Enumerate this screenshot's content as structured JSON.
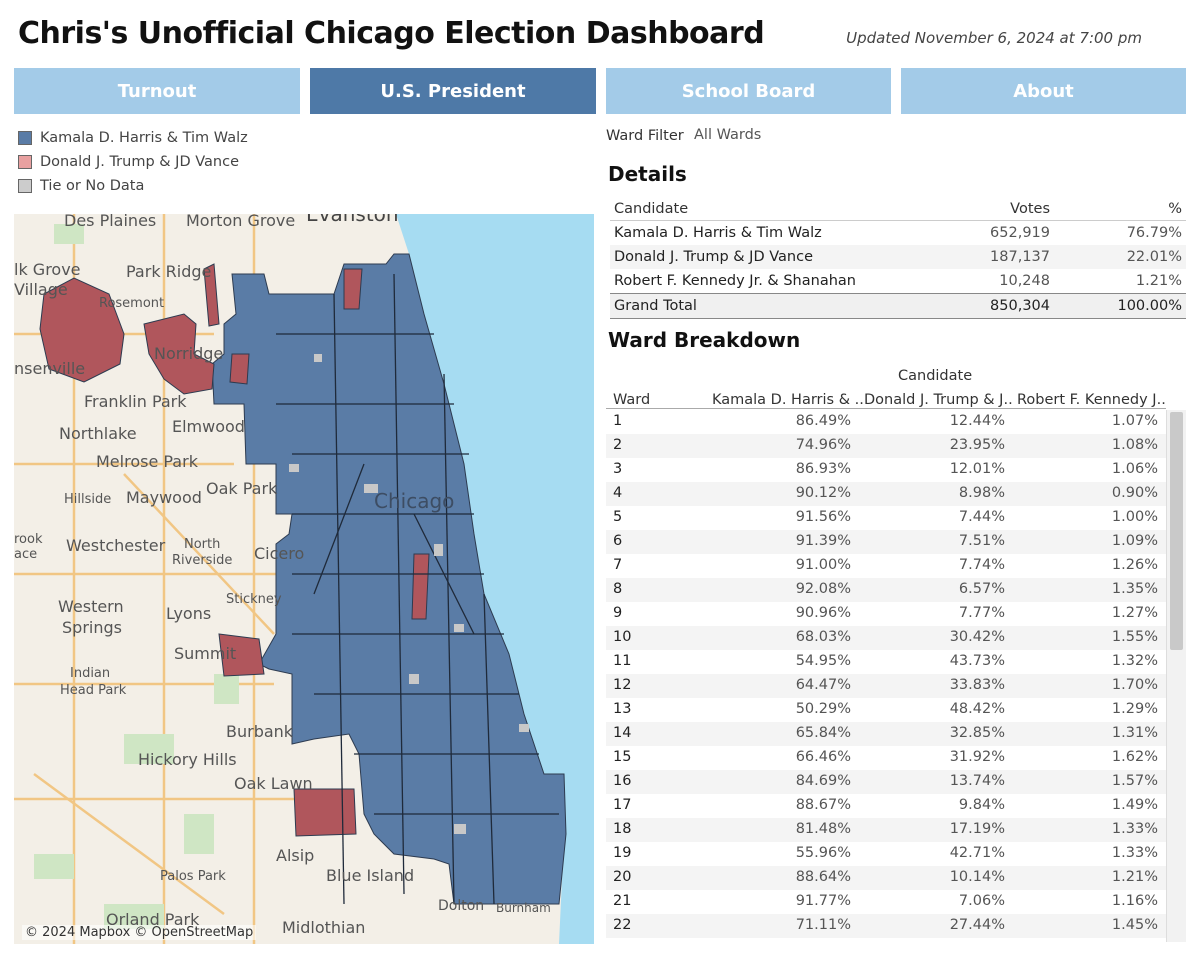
{
  "header": {
    "title": "Chris's Unofficial Chicago Election Dashboard",
    "updated": "Updated November 6, 2024 at 7:00 pm"
  },
  "tabs": [
    {
      "label": "Turnout",
      "active": false
    },
    {
      "label": "U.S. President",
      "active": true
    },
    {
      "label": "School Board",
      "active": false
    },
    {
      "label": "About",
      "active": false
    }
  ],
  "colors": {
    "harris": "#4e79a7",
    "trump": "#b0565c",
    "tie": "#c8c8c8",
    "tab_inactive": "#a3cbe8",
    "tab_active": "#4e79a7",
    "lake": "#a6dcf2"
  },
  "legend": [
    {
      "label": "Kamala D. Harris & Tim Walz",
      "color": "#5a7ca6"
    },
    {
      "label": "Donald J. Trump & JD Vance",
      "color": "#e8a0a0"
    },
    {
      "label": "Tie or No Data",
      "color": "#cccccc"
    }
  ],
  "map": {
    "labels": [
      "Des Plaines",
      "Morton Grove",
      "Evanston",
      "lk Grove",
      "Village",
      "Park Ridge",
      "Rosemont",
      "Norridge",
      "nsenville",
      "Franklin Park",
      "Northlake",
      "Elmwood",
      "Melrose Park",
      "Hillside",
      "Maywood",
      "Oak Park",
      "Chicago",
      "rook",
      "ace",
      "Westchester",
      "North",
      "Riverside",
      "Cicero",
      "Stickney",
      "Western",
      "Springs",
      "Lyons",
      "Summit",
      "Indian",
      "Head Park",
      "Burbank",
      "Hickory Hills",
      "Oak Lawn",
      "Alsip",
      "Palos Park",
      "Blue Island",
      "Orland Park",
      "Midlothian",
      "Dolton",
      "Burnham"
    ],
    "attribution": "© 2024 Mapbox © OpenStreetMap"
  },
  "filter": {
    "label": "Ward Filter",
    "value": "All Wards"
  },
  "details": {
    "title": "Details",
    "columns": [
      "Candidate",
      "Votes",
      "%"
    ],
    "rows": [
      [
        "Kamala D. Harris & Tim Walz",
        "652,919",
        "76.79%"
      ],
      [
        "Donald J. Trump & JD Vance",
        "187,137",
        "22.01%"
      ],
      [
        "Robert F. Kennedy Jr. & Shanahan",
        "10,248",
        "1.21%"
      ]
    ],
    "total": [
      "Grand Total",
      "850,304",
      "100.00%"
    ]
  },
  "ward_breakdown": {
    "title": "Ward Breakdown",
    "candidate_header": "Candidate",
    "columns": [
      "Ward",
      "Kamala D. Harris & ..",
      "Donald J. Trump & J..",
      "Robert F. Kennedy J.."
    ],
    "rows": [
      [
        "1",
        "86.49%",
        "12.44%",
        "1.07%"
      ],
      [
        "2",
        "74.96%",
        "23.95%",
        "1.08%"
      ],
      [
        "3",
        "86.93%",
        "12.01%",
        "1.06%"
      ],
      [
        "4",
        "90.12%",
        "8.98%",
        "0.90%"
      ],
      [
        "5",
        "91.56%",
        "7.44%",
        "1.00%"
      ],
      [
        "6",
        "91.39%",
        "7.51%",
        "1.09%"
      ],
      [
        "7",
        "91.00%",
        "7.74%",
        "1.26%"
      ],
      [
        "8",
        "92.08%",
        "6.57%",
        "1.35%"
      ],
      [
        "9",
        "90.96%",
        "7.77%",
        "1.27%"
      ],
      [
        "10",
        "68.03%",
        "30.42%",
        "1.55%"
      ],
      [
        "11",
        "54.95%",
        "43.73%",
        "1.32%"
      ],
      [
        "12",
        "64.47%",
        "33.83%",
        "1.70%"
      ],
      [
        "13",
        "50.29%",
        "48.42%",
        "1.29%"
      ],
      [
        "14",
        "65.84%",
        "32.85%",
        "1.31%"
      ],
      [
        "15",
        "66.46%",
        "31.92%",
        "1.62%"
      ],
      [
        "16",
        "84.69%",
        "13.74%",
        "1.57%"
      ],
      [
        "17",
        "88.67%",
        "9.84%",
        "1.49%"
      ],
      [
        "18",
        "81.48%",
        "17.19%",
        "1.33%"
      ],
      [
        "19",
        "55.96%",
        "42.71%",
        "1.33%"
      ],
      [
        "20",
        "88.64%",
        "10.14%",
        "1.21%"
      ],
      [
        "21",
        "91.77%",
        "7.06%",
        "1.16%"
      ],
      [
        "22",
        "71.11%",
        "27.44%",
        "1.45%"
      ]
    ]
  }
}
